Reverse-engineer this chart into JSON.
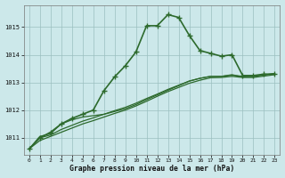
{
  "title": "Graphe pression niveau de la mer (hPa)",
  "background_color": "#cce8ea",
  "grid_color": "#9bbfc0",
  "line_color": "#2d6a2d",
  "ylim": [
    1010.4,
    1015.8
  ],
  "yticks": [
    1011,
    1012,
    1013,
    1014,
    1015
  ],
  "x_labels": [
    "0",
    "1",
    "2",
    "3",
    "4",
    "5",
    "6",
    "7",
    "8",
    "9",
    "10",
    "11",
    "12",
    "13",
    "14",
    "15",
    "16",
    "17",
    "18",
    "19",
    "20",
    "21",
    "22",
    "23"
  ],
  "series": [
    {
      "y": [
        1010.6,
        1011.0,
        1011.2,
        1011.5,
        1011.7,
        1011.85,
        1012.0,
        1012.7,
        1013.2,
        1013.6,
        1014.1,
        1015.05,
        1015.05,
        1015.45,
        1015.35,
        1014.7,
        1014.15,
        1014.05,
        1013.95,
        1014.0,
        1013.25,
        1013.25,
        1013.3,
        1013.3
      ],
      "marker": "+",
      "linewidth": 1.2,
      "markersize": 4,
      "markeredgewidth": 1.0,
      "zorder": 5
    },
    {
      "y": [
        1010.6,
        1011.05,
        1011.15,
        1011.5,
        1011.65,
        1011.75,
        1011.8,
        1011.85,
        1011.95,
        1012.05,
        1012.2,
        1012.38,
        1012.55,
        1012.72,
        1012.88,
        1013.05,
        1013.15,
        1013.22,
        1013.22,
        1013.28,
        1013.2,
        1013.22,
        1013.28,
        1013.32
      ],
      "marker": "None",
      "linewidth": 0.9,
      "markersize": 0,
      "markeredgewidth": 0,
      "zorder": 3
    },
    {
      "y": [
        1010.6,
        1011.0,
        1011.1,
        1011.3,
        1011.45,
        1011.6,
        1011.72,
        1011.85,
        1011.98,
        1012.1,
        1012.25,
        1012.42,
        1012.58,
        1012.75,
        1012.9,
        1013.05,
        1013.15,
        1013.22,
        1013.22,
        1013.26,
        1013.22,
        1013.22,
        1013.27,
        1013.32
      ],
      "marker": "None",
      "linewidth": 0.9,
      "markersize": 0,
      "markeredgewidth": 0,
      "zorder": 3
    },
    {
      "y": [
        1010.6,
        1010.9,
        1011.05,
        1011.2,
        1011.35,
        1011.5,
        1011.62,
        1011.75,
        1011.88,
        1012.0,
        1012.15,
        1012.32,
        1012.5,
        1012.67,
        1012.82,
        1012.97,
        1013.08,
        1013.17,
        1013.18,
        1013.22,
        1013.18,
        1013.18,
        1013.23,
        1013.28
      ],
      "marker": "None",
      "linewidth": 0.9,
      "markersize": 0,
      "markeredgewidth": 0,
      "zorder": 2
    }
  ]
}
